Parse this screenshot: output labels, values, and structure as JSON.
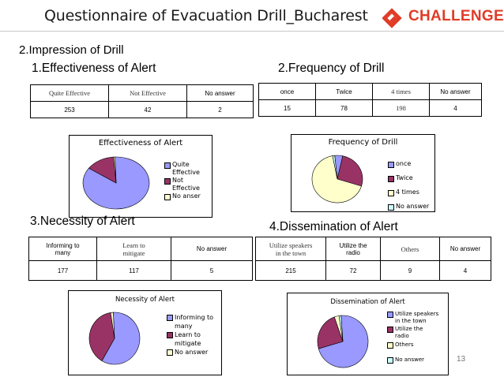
{
  "header": {
    "title": "Questionnaire of Evacuation Drill_Bucharest",
    "logo_text": "CHALLENGE"
  },
  "section_heading": "2.Impression of  Drill",
  "colors": {
    "blue": "#9999ff",
    "maroon": "#993366",
    "cream": "#ffffcc",
    "teal": "#ccffff",
    "logo": "#e03c28"
  },
  "alert": {
    "heading": "1.Effectiveness of Alert",
    "table": {
      "headers": [
        "Quite Effective",
        "Not Effective",
        "No answer"
      ],
      "values": [
        "253",
        "42",
        "2"
      ]
    },
    "chart": {
      "title": "Effectiveness of Alert",
      "legend": [
        [
          "Quite",
          "Effective"
        ],
        [
          "Not",
          "Effective"
        ],
        [
          "No anser"
        ]
      ]
    }
  },
  "frequency": {
    "heading": "2.Frequency of Drill",
    "table": {
      "headers": [
        "once",
        "Twice",
        "4 times",
        "No answer"
      ],
      "values": [
        "15",
        "78",
        "198",
        "4"
      ]
    },
    "chart": {
      "title": "Frequency of Drill",
      "legend": [
        [
          "once"
        ],
        [
          "Twice"
        ],
        [
          "4 times"
        ],
        [
          "No answer"
        ]
      ]
    }
  },
  "necessity": {
    "heading": "3.Necessity of Alert",
    "table": {
      "headers": [
        [
          "Informing to",
          "many"
        ],
        [
          "Learn to",
          "mitigate"
        ],
        [
          "No answer"
        ]
      ],
      "values": [
        "177",
        "117",
        "5"
      ]
    },
    "chart": {
      "title": "Necessity of Alert",
      "legend": [
        [
          "Informing to",
          "many"
        ],
        [
          "Learn to",
          "mitigate"
        ],
        [
          "No answer"
        ]
      ]
    }
  },
  "dissemination": {
    "heading": "4.Dissemination of Alert",
    "table": {
      "headers": [
        [
          "Utilize speakers",
          "in the town"
        ],
        [
          "Utilize the",
          "radio"
        ],
        [
          "Others"
        ],
        [
          "No answer"
        ]
      ],
      "values": [
        "215",
        "72",
        "9",
        "4"
      ]
    },
    "chart": {
      "title": "Dissemination of Alert",
      "legend": [
        [
          "Utilize speakers",
          "in the town"
        ],
        [
          "Utilize the",
          "radio"
        ],
        [
          "Others"
        ],
        [
          "No answer"
        ]
      ]
    }
  },
  "chart_data": [
    {
      "type": "pie",
      "title": "Effectiveness of Alert",
      "categories": [
        "Quite Effective",
        "Not Effective",
        "No anser"
      ],
      "values": [
        253,
        42,
        2
      ]
    },
    {
      "type": "pie",
      "title": "Frequency of Drill",
      "categories": [
        "once",
        "Twice",
        "4 times",
        "No answer"
      ],
      "values": [
        15,
        78,
        198,
        4
      ]
    },
    {
      "type": "pie",
      "title": "Necessity of Alert",
      "categories": [
        "Informing to many",
        "Learn to mitigate",
        "No answer"
      ],
      "values": [
        177,
        117,
        5
      ]
    },
    {
      "type": "pie",
      "title": "Dissemination of Alert",
      "categories": [
        "Utilize speakers in the town",
        "Utilize the radio",
        "Others",
        "No answer"
      ],
      "values": [
        215,
        72,
        9,
        4
      ]
    }
  ],
  "page_number": "13"
}
